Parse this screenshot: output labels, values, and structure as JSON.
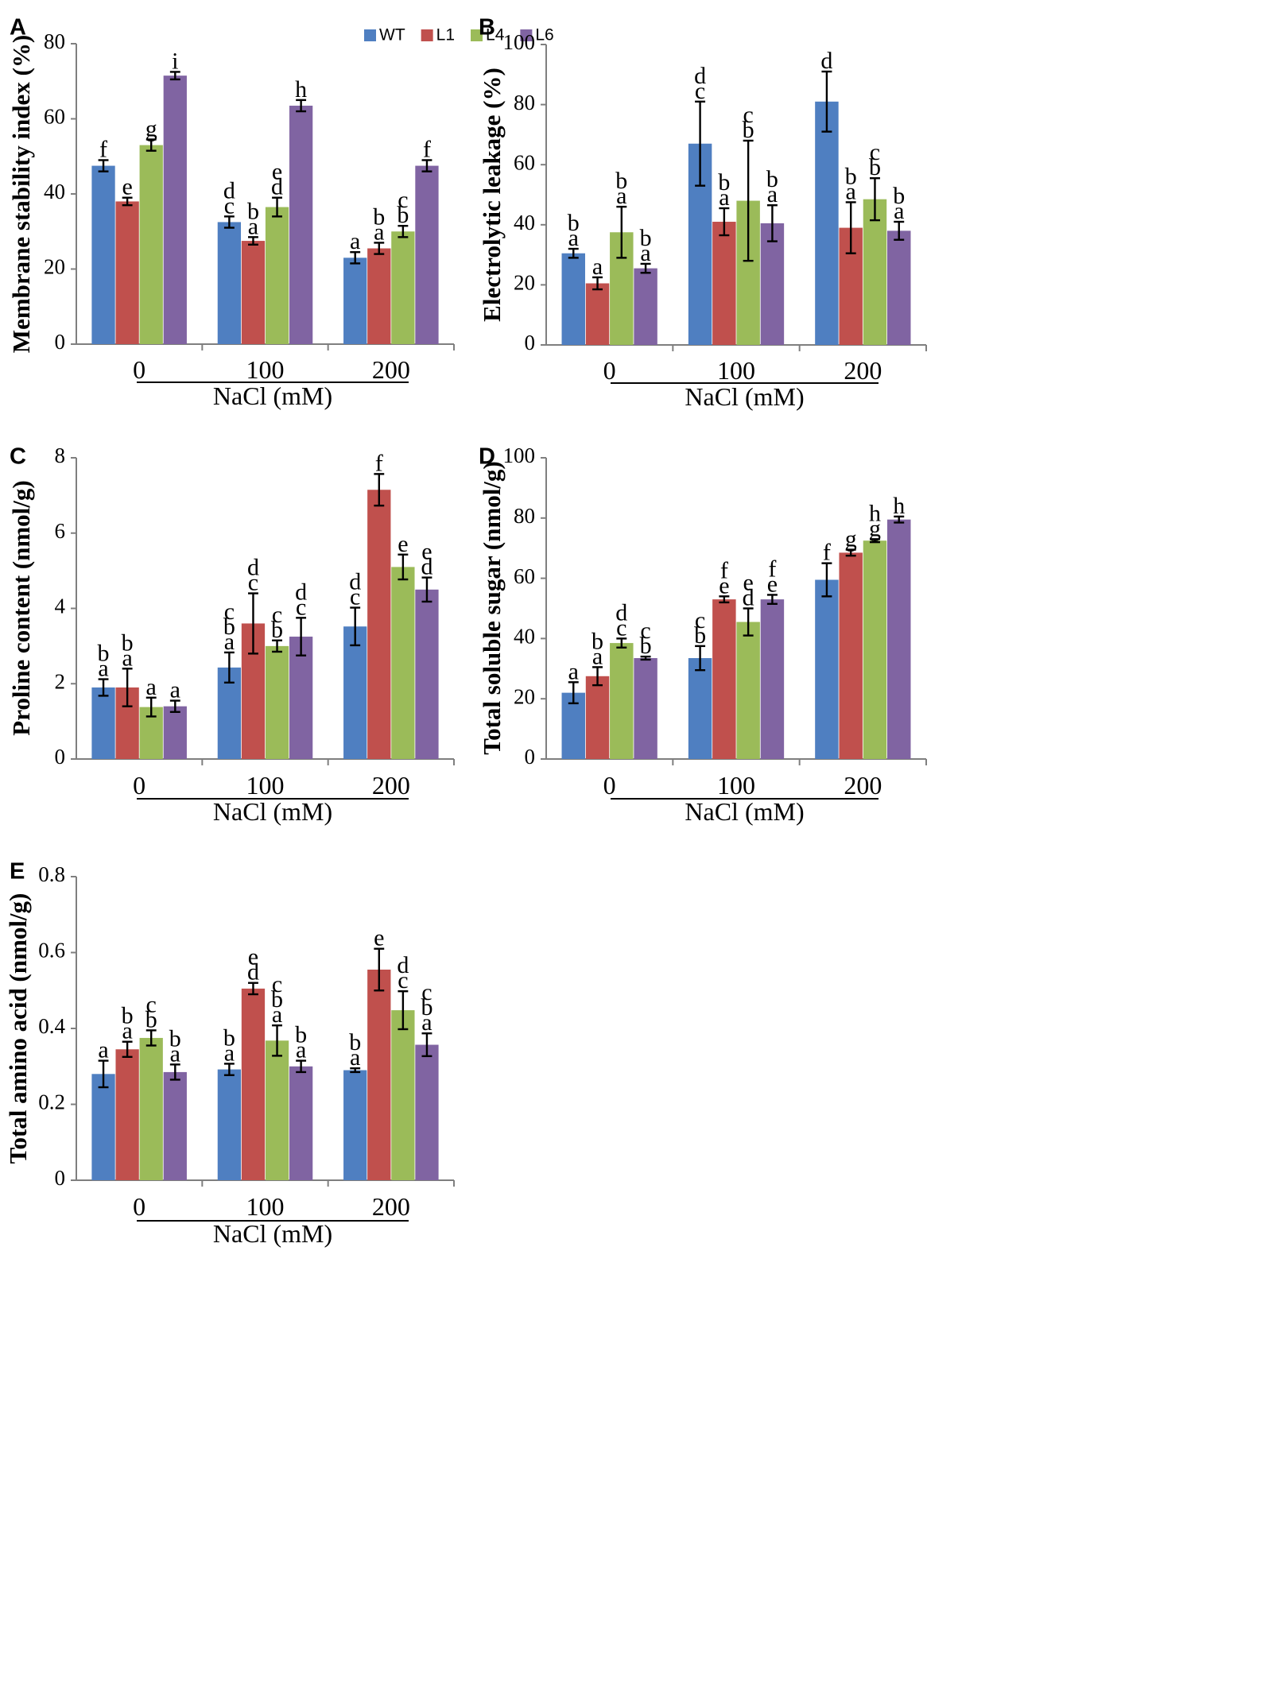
{
  "colors": {
    "WT": "#4f7fc1",
    "L1": "#c0504d",
    "L4": "#9bbb59",
    "L6": "#8064a2"
  },
  "legend_series": [
    "WT",
    "L1",
    "L4",
    "L6"
  ],
  "chart_data": [
    {
      "type": "bar",
      "panel": "A",
      "ylabel": "Membrane stability index (%)",
      "xlabel": "NaCl (mM)",
      "categories": [
        "0",
        "100",
        "200"
      ],
      "ylim": [
        0,
        80
      ],
      "yticks": [
        "0",
        "20",
        "40",
        "60",
        "80"
      ],
      "legend": true,
      "series": [
        {
          "name": "WT",
          "values": [
            47.5,
            32.5,
            23
          ],
          "errors": [
            1.5,
            1.5,
            1.5
          ],
          "letters": [
            "f",
            "d c",
            "a"
          ]
        },
        {
          "name": "L1",
          "values": [
            38,
            27.5,
            25.5
          ],
          "errors": [
            1,
            1,
            1.5
          ],
          "letters": [
            "e",
            "b a",
            "b a"
          ]
        },
        {
          "name": "L4",
          "values": [
            53,
            36.5,
            30
          ],
          "errors": [
            1.5,
            2.5,
            1.5
          ],
          "letters": [
            "g",
            "e d",
            "c b"
          ]
        },
        {
          "name": "L6",
          "values": [
            71.5,
            63.5,
            47.5
          ],
          "errors": [
            1,
            1.5,
            1.5
          ],
          "letters": [
            "i",
            "h",
            "f"
          ]
        }
      ]
    },
    {
      "type": "bar",
      "panel": "B",
      "ylabel": "Electrolytic leakage (%)",
      "xlabel": "NaCl (mM)",
      "categories": [
        "0",
        "100",
        "200"
      ],
      "ylim": [
        0,
        100
      ],
      "yticks": [
        "0",
        "20",
        "40",
        "60",
        "80",
        "100"
      ],
      "legend": false,
      "series": [
        {
          "name": "WT",
          "values": [
            30.5,
            67,
            81
          ],
          "errors": [
            1.5,
            14,
            10
          ],
          "letters": [
            "b a",
            "d c",
            "d"
          ]
        },
        {
          "name": "L1",
          "values": [
            20.5,
            41,
            39
          ],
          "errors": [
            2,
            4.5,
            8.5
          ],
          "letters": [
            "a",
            "b a",
            "b a"
          ]
        },
        {
          "name": "L4",
          "values": [
            37.5,
            48,
            48.5
          ],
          "errors": [
            8.5,
            20,
            7
          ],
          "letters": [
            "b a",
            "c b",
            "c b"
          ]
        },
        {
          "name": "L6",
          "values": [
            25.5,
            40.5,
            38
          ],
          "errors": [
            1.5,
            6,
            3
          ],
          "letters": [
            "b a",
            "b a",
            "b a"
          ]
        }
      ]
    },
    {
      "type": "bar",
      "panel": "C",
      "ylabel": "Proline content (nmol/g)",
      "xlabel": "NaCl (mM)",
      "categories": [
        "0",
        "100",
        "200"
      ],
      "ylim": [
        0,
        8
      ],
      "yticks": [
        "0",
        "2",
        "4",
        "6",
        "8"
      ],
      "legend": false,
      "series": [
        {
          "name": "WT",
          "values": [
            1.9,
            2.43,
            3.52
          ],
          "errors": [
            0.22,
            0.4,
            0.5
          ],
          "letters": [
            "b a",
            "c b a",
            "d c"
          ]
        },
        {
          "name": "L1",
          "values": [
            1.9,
            3.6,
            7.15
          ],
          "errors": [
            0.5,
            0.8,
            0.42
          ],
          "letters": [
            "b a",
            "d c",
            "f"
          ]
        },
        {
          "name": "L4",
          "values": [
            1.38,
            3.0,
            5.1
          ],
          "errors": [
            0.25,
            0.15,
            0.33
          ],
          "letters": [
            "a",
            "c b",
            "e"
          ]
        },
        {
          "name": "L6",
          "values": [
            1.4,
            3.25,
            4.5
          ],
          "errors": [
            0.15,
            0.5,
            0.32
          ],
          "letters": [
            "a",
            "d c",
            "e d"
          ]
        }
      ]
    },
    {
      "type": "bar",
      "panel": "D",
      "ylabel": "Total soluble sugar (nmol/g)",
      "xlabel": "NaCl (mM)",
      "categories": [
        "0",
        "100",
        "200"
      ],
      "ylim": [
        0,
        100
      ],
      "yticks": [
        "0",
        "20",
        "40",
        "60",
        "80",
        "100"
      ],
      "legend": false,
      "series": [
        {
          "name": "WT",
          "values": [
            22,
            33.5,
            59.5
          ],
          "errors": [
            3.5,
            4,
            5.5
          ],
          "letters": [
            "a",
            "c b",
            "f"
          ]
        },
        {
          "name": "L1",
          "values": [
            27.5,
            53,
            68.5
          ],
          "errors": [
            3,
            1,
            1
          ],
          "letters": [
            "b a",
            "f e",
            "g"
          ]
        },
        {
          "name": "L4",
          "values": [
            38.5,
            45.5,
            72.5
          ],
          "errors": [
            1.5,
            4.5,
            0.5
          ],
          "letters": [
            "d c",
            "e d",
            "h g"
          ]
        },
        {
          "name": "L6",
          "values": [
            33.5,
            53,
            79.5
          ],
          "errors": [
            0.5,
            1.5,
            1
          ],
          "letters": [
            "c b",
            "f e",
            "h"
          ]
        }
      ]
    },
    {
      "type": "bar",
      "panel": "E",
      "ylabel": "Total amino acid (nmol/g)",
      "xlabel": "NaCl (mM)",
      "categories": [
        "0",
        "100",
        "200"
      ],
      "ylim": [
        0,
        0.8
      ],
      "yticks": [
        "0",
        "0.2",
        "0.4",
        "0.6",
        "0.8"
      ],
      "legend": false,
      "series": [
        {
          "name": "WT",
          "values": [
            0.28,
            0.292,
            0.29
          ],
          "errors": [
            0.035,
            0.015,
            0.005
          ],
          "letters": [
            "a",
            "b a",
            "b a"
          ]
        },
        {
          "name": "L1",
          "values": [
            0.345,
            0.505,
            0.555
          ],
          "errors": [
            0.02,
            0.015,
            0.055
          ],
          "letters": [
            "b a",
            "e d",
            "e"
          ]
        },
        {
          "name": "L4",
          "values": [
            0.375,
            0.368,
            0.448
          ],
          "errors": [
            0.02,
            0.04,
            0.05
          ],
          "letters": [
            "c b",
            "c b a",
            "d c"
          ]
        },
        {
          "name": "L6",
          "values": [
            0.285,
            0.3,
            0.357
          ],
          "errors": [
            0.02,
            0.015,
            0.03
          ],
          "letters": [
            "b a",
            "b a",
            "c b a"
          ]
        }
      ]
    }
  ]
}
